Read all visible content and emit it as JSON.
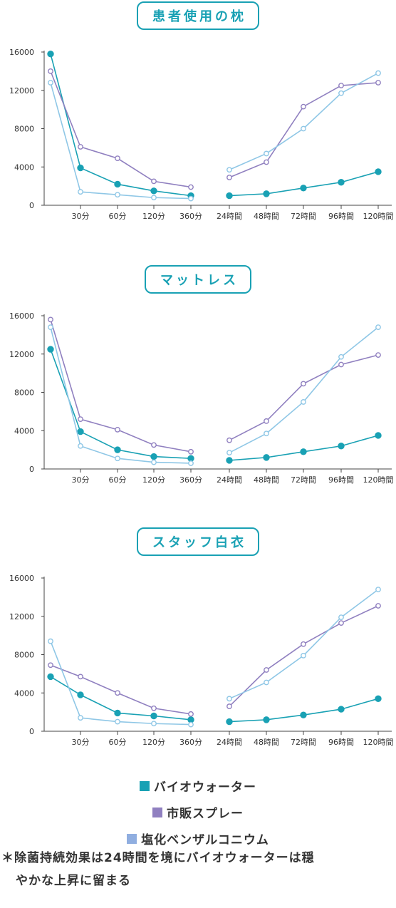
{
  "legend": {
    "items": [
      {
        "label": "バイオウォーター",
        "color": "#19a1b4"
      },
      {
        "label": "市販スプレー",
        "color": "#9080c0"
      },
      {
        "label": "塩化ベンザルコニウム",
        "color": "#90aee0"
      }
    ]
  },
  "footnote": {
    "line1": "＊除菌持続効果は24時間を境にバイオウォーターは穏",
    "line2": "やかな上昇に留まる"
  },
  "chart_data": [
    {
      "type": "line",
      "title": "患者使用の枕",
      "categories": [
        "",
        "30分",
        "60分",
        "120分",
        "360分",
        "24時間",
        "48時間",
        "72時間",
        "96時間",
        "120時間"
      ],
      "ylim": [
        0,
        16000
      ],
      "yticks": [
        "16000",
        "12000",
        "8000",
        "4000",
        "0"
      ],
      "series": [
        {
          "name": "バイオウォーター",
          "color": "#19a1b4",
          "filled": true,
          "values": [
            15800,
            3900,
            2200,
            1500,
            1000,
            1000,
            1200,
            1800,
            2400,
            3500
          ]
        },
        {
          "name": "市販スプレー",
          "color": "#9080c0",
          "filled": false,
          "values": [
            14000,
            6100,
            4900,
            2500,
            1900,
            2900,
            4500,
            10300,
            12500,
            12800
          ]
        },
        {
          "name": "塩化ベンザルコニウム",
          "color": "#8fc7e6",
          "filled": false,
          "values": [
            12800,
            1400,
            1100,
            800,
            700,
            3700,
            5400,
            8000,
            11700,
            13800
          ]
        }
      ]
    },
    {
      "type": "line",
      "title": "マットレス",
      "categories": [
        "",
        "30分",
        "60分",
        "120分",
        "360分",
        "24時間",
        "48時間",
        "72時間",
        "96時間",
        "120時間"
      ],
      "ylim": [
        0,
        16000
      ],
      "yticks": [
        "16000",
        "12000",
        "8000",
        "4000",
        "0"
      ],
      "series": [
        {
          "name": "バイオウォーター",
          "color": "#19a1b4",
          "filled": true,
          "values": [
            12500,
            3900,
            2000,
            1300,
            1100,
            900,
            1200,
            1800,
            2400,
            3500
          ]
        },
        {
          "name": "市販スプレー",
          "color": "#9080c0",
          "filled": false,
          "values": [
            15600,
            5200,
            4100,
            2500,
            1800,
            3000,
            5000,
            8900,
            10900,
            11900
          ]
        },
        {
          "name": "塩化ベンザルコニウム",
          "color": "#8fc7e6",
          "filled": false,
          "values": [
            14800,
            2400,
            1100,
            700,
            600,
            1700,
            3700,
            7000,
            11700,
            14800
          ]
        }
      ]
    },
    {
      "type": "line",
      "title": "スタッフ白衣",
      "categories": [
        "",
        "30分",
        "60分",
        "120分",
        "360分",
        "24時間",
        "48時間",
        "72時間",
        "96時間",
        "120時間"
      ],
      "ylim": [
        0,
        16000
      ],
      "yticks": [
        "16000",
        "12000",
        "8000",
        "4000",
        "0"
      ],
      "series": [
        {
          "name": "バイオウォーター",
          "color": "#19a1b4",
          "filled": true,
          "values": [
            5700,
            3800,
            1900,
            1600,
            1200,
            1000,
            1200,
            1700,
            2300,
            3400
          ]
        },
        {
          "name": "市販スプレー",
          "color": "#9080c0",
          "filled": false,
          "values": [
            6900,
            5700,
            4000,
            2400,
            1800,
            2600,
            6400,
            9100,
            11300,
            13100
          ]
        },
        {
          "name": "塩化ベンザルコニウム",
          "color": "#8fc7e6",
          "filled": false,
          "values": [
            9400,
            1400,
            1000,
            800,
            700,
            3400,
            5100,
            7900,
            11900,
            14800
          ]
        }
      ]
    }
  ]
}
